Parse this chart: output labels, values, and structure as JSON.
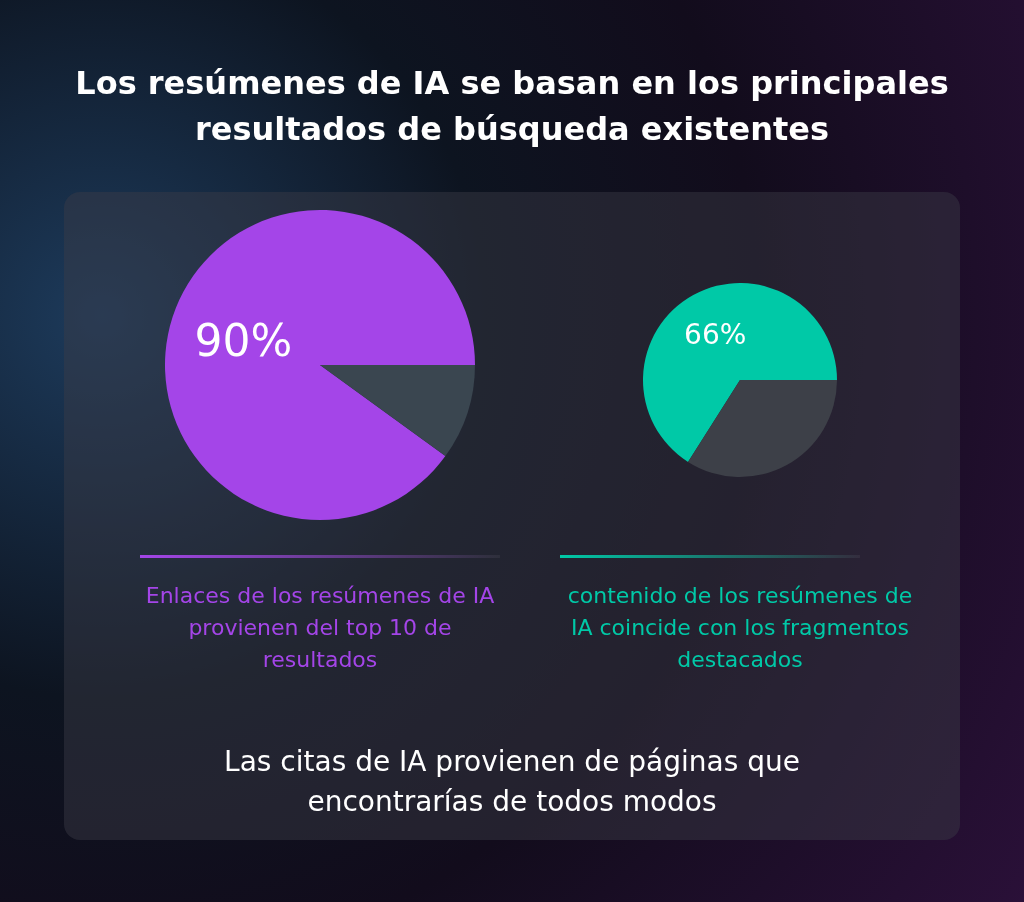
{
  "chart_data": [
    {
      "type": "pie",
      "title": "Los resúmenes de IA se basan en los principales resultados de búsqueda existentes",
      "categories": [
        null,
        null
      ],
      "values": [
        90,
        10
      ],
      "colors": [
        "#a445e8",
        "#3a4650"
      ],
      "value_labels": [
        "90%",
        null
      ],
      "annotations": [
        "Enlaces de los resúmenes de IA provienen del top 10 de resultados"
      ]
    },
    {
      "type": "pie",
      "categories": [
        null,
        null
      ],
      "values": [
        66,
        34
      ],
      "colors": [
        "#00c9a7",
        "#3d4048"
      ],
      "value_labels": [
        "66%",
        null
      ],
      "annotations": [
        "contenido de los resúmenes de IA coincide con los fragmentos destacados",
        "Las citas de IA provienen de páginas que encontrarías de todos modos"
      ]
    }
  ]
}
